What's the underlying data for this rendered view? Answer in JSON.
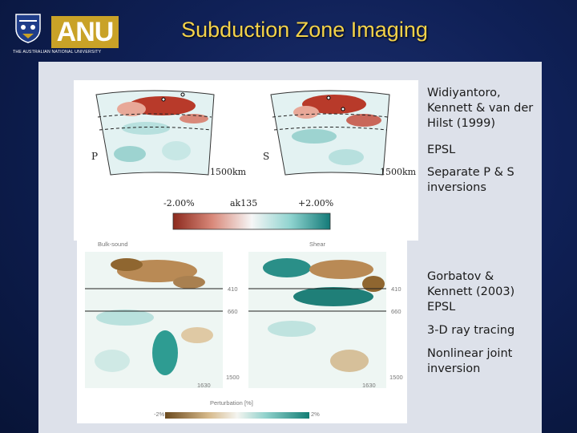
{
  "logo": {
    "wordmark": "ANU",
    "subtitle": "THE AUSTRALIAN NATIONAL UNIVERSITY"
  },
  "slide": {
    "title": "Subduction Zone Imaging"
  },
  "figure_top": {
    "panel_left_label": "P",
    "panel_right_label": "S",
    "depth_left": "1500km",
    "depth_right": "1500km",
    "scale_min": "-2.00%",
    "scale_mid": "ak135",
    "scale_max": "+2.00%"
  },
  "figure_bottom": {
    "panel_left_title": "Bulk-sound",
    "panel_right_title": "Shear",
    "depth_410_left": "410",
    "depth_660_left": "660",
    "depth_410_right": "410",
    "depth_660_right": "660",
    "depth_1500_left": "1500",
    "depth_1500_right": "1500",
    "base_left": "1630",
    "base_right": "1630",
    "scale_title": "Perturbation [%]",
    "scale_min": "-2%",
    "scale_max": "2%"
  },
  "notes": {
    "ref1": "Widiyantoro, Kennett & van der Hilst (1999)",
    "ref1_journal": "EPSL",
    "ref1_method": "Separate P & S inversions",
    "ref2": "Gorbatov & Kennett (2003) EPSL",
    "ref2_method": "3-D ray tracing",
    "ref2_method2": "Nonlinear joint inversion"
  },
  "colors": {
    "title": "#f3d24a",
    "background": "#0f2056",
    "content_panel": "#dde1ea",
    "logo_gold": "#c9a227"
  }
}
